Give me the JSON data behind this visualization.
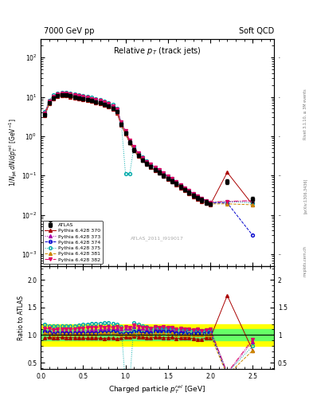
{
  "title_left": "7000 GeV pp",
  "title_right": "Soft QCD",
  "plot_title": "Relative $p_T$ (track jets)",
  "xlabel": "Charged particle $p_T^{rel}$ [GeV]",
  "ylabel_main": "$1/N_{jet}\\,dN/dp_T^{rel}$ [GeV$^{-1}$]",
  "ylabel_ratio": "Ratio to ATLAS",
  "watermark": "ATLAS_2011_I919017",
  "right_label_top": "Rivet 3.1.10, ≥ 3M events",
  "right_label_mid": "[arXiv:1306.3436]",
  "right_label_bot": "mcplots.cern.ch",
  "xlim": [
    0.0,
    2.75
  ],
  "ylim_main": [
    0.0005,
    300
  ],
  "ylim_ratio": [
    0.38,
    2.25
  ],
  "atlas_x": [
    0.05,
    0.1,
    0.15,
    0.2,
    0.25,
    0.3,
    0.35,
    0.4,
    0.45,
    0.5,
    0.55,
    0.6,
    0.65,
    0.7,
    0.75,
    0.8,
    0.85,
    0.9,
    0.95,
    1.0,
    1.05,
    1.1,
    1.15,
    1.2,
    1.25,
    1.3,
    1.35,
    1.4,
    1.45,
    1.5,
    1.55,
    1.6,
    1.65,
    1.7,
    1.75,
    1.8,
    1.85,
    1.9,
    1.95,
    2.0,
    2.2,
    2.5
  ],
  "atlas_y": [
    3.5,
    7.0,
    9.5,
    10.8,
    11.2,
    11.0,
    10.5,
    10.0,
    9.5,
    9.0,
    8.5,
    8.0,
    7.5,
    7.0,
    6.5,
    5.8,
    5.2,
    4.2,
    2.0,
    1.2,
    0.7,
    0.45,
    0.32,
    0.25,
    0.2,
    0.17,
    0.14,
    0.12,
    0.1,
    0.085,
    0.072,
    0.062,
    0.052,
    0.044,
    0.037,
    0.031,
    0.027,
    0.024,
    0.021,
    0.019,
    0.07,
    0.025
  ],
  "atlas_yerr": [
    0.3,
    0.5,
    0.6,
    0.6,
    0.6,
    0.6,
    0.6,
    0.5,
    0.5,
    0.5,
    0.5,
    0.4,
    0.4,
    0.4,
    0.3,
    0.3,
    0.3,
    0.2,
    0.15,
    0.1,
    0.07,
    0.05,
    0.03,
    0.025,
    0.02,
    0.018,
    0.015,
    0.013,
    0.011,
    0.009,
    0.008,
    0.007,
    0.006,
    0.005,
    0.004,
    0.004,
    0.003,
    0.003,
    0.003,
    0.002,
    0.01,
    0.004
  ],
  "py370_x": [
    0.05,
    0.1,
    0.15,
    0.2,
    0.25,
    0.3,
    0.35,
    0.4,
    0.45,
    0.5,
    0.55,
    0.6,
    0.65,
    0.7,
    0.75,
    0.8,
    0.85,
    0.9,
    0.95,
    1.0,
    1.05,
    1.1,
    1.15,
    1.2,
    1.25,
    1.3,
    1.35,
    1.4,
    1.45,
    1.5,
    1.55,
    1.6,
    1.65,
    1.7,
    1.75,
    1.8,
    1.85,
    1.9,
    1.95,
    2.0,
    2.2,
    2.5
  ],
  "py370_y": [
    3.3,
    6.7,
    9.0,
    10.3,
    10.7,
    10.5,
    10.0,
    9.5,
    9.0,
    8.5,
    8.0,
    7.6,
    7.1,
    6.6,
    6.1,
    5.5,
    4.9,
    3.9,
    1.9,
    1.15,
    0.67,
    0.44,
    0.31,
    0.24,
    0.19,
    0.16,
    0.135,
    0.115,
    0.095,
    0.081,
    0.069,
    0.058,
    0.049,
    0.042,
    0.035,
    0.029,
    0.025,
    0.022,
    0.02,
    0.018,
    0.12,
    0.018
  ],
  "py373_x": [
    0.05,
    0.1,
    0.15,
    0.2,
    0.25,
    0.3,
    0.35,
    0.4,
    0.45,
    0.5,
    0.55,
    0.6,
    0.65,
    0.7,
    0.75,
    0.8,
    0.85,
    0.9,
    0.95,
    1.0,
    1.05,
    1.1,
    1.15,
    1.2,
    1.25,
    1.3,
    1.35,
    1.4,
    1.45,
    1.5,
    1.55,
    1.6,
    1.65,
    1.7,
    1.75,
    1.8,
    1.85,
    1.9,
    1.95,
    2.0,
    2.2,
    2.5
  ],
  "py373_y": [
    3.8,
    7.5,
    10.0,
    11.5,
    12.0,
    11.8,
    11.2,
    10.7,
    10.2,
    9.7,
    9.2,
    8.7,
    8.2,
    7.7,
    7.2,
    6.5,
    5.8,
    4.7,
    2.2,
    1.35,
    0.78,
    0.52,
    0.36,
    0.28,
    0.22,
    0.185,
    0.157,
    0.134,
    0.112,
    0.095,
    0.08,
    0.068,
    0.057,
    0.049,
    0.041,
    0.034,
    0.03,
    0.026,
    0.023,
    0.021,
    0.021,
    0.022
  ],
  "py374_x": [
    0.05,
    0.1,
    0.15,
    0.2,
    0.25,
    0.3,
    0.35,
    0.4,
    0.45,
    0.5,
    0.55,
    0.6,
    0.65,
    0.7,
    0.75,
    0.8,
    0.85,
    0.9,
    0.95,
    1.0,
    1.05,
    1.1,
    1.15,
    1.2,
    1.25,
    1.3,
    1.35,
    1.4,
    1.45,
    1.5,
    1.55,
    1.6,
    1.65,
    1.7,
    1.75,
    1.8,
    1.85,
    1.9,
    1.95,
    2.0,
    2.2,
    2.5
  ],
  "py374_y": [
    3.7,
    7.3,
    9.7,
    11.1,
    11.6,
    11.4,
    10.8,
    10.3,
    9.8,
    9.3,
    8.8,
    8.3,
    7.8,
    7.3,
    6.8,
    6.1,
    5.5,
    4.4,
    2.05,
    1.25,
    0.72,
    0.48,
    0.34,
    0.26,
    0.21,
    0.175,
    0.148,
    0.127,
    0.106,
    0.09,
    0.076,
    0.064,
    0.054,
    0.046,
    0.038,
    0.032,
    0.028,
    0.025,
    0.022,
    0.02,
    0.02,
    0.003
  ],
  "py375_x": [
    0.05,
    0.1,
    0.15,
    0.2,
    0.25,
    0.3,
    0.35,
    0.4,
    0.45,
    0.5,
    0.55,
    0.6,
    0.65,
    0.7,
    0.75,
    0.8,
    0.85,
    0.9,
    0.95,
    1.0,
    1.05,
    1.1,
    1.15,
    1.2,
    1.25,
    1.3,
    1.35,
    1.4,
    1.45,
    1.5,
    1.55,
    1.6,
    1.65,
    1.7,
    1.75,
    1.8,
    1.85,
    1.9,
    1.95,
    2.0,
    2.2,
    2.5
  ],
  "py375_y": [
    4.2,
    8.2,
    11.0,
    12.5,
    13.0,
    12.8,
    12.2,
    11.7,
    11.2,
    10.7,
    10.2,
    9.7,
    9.1,
    8.5,
    7.9,
    7.1,
    6.3,
    5.0,
    2.3,
    0.11,
    0.11,
    0.55,
    0.38,
    0.29,
    0.23,
    0.19,
    0.16,
    0.137,
    0.114,
    0.096,
    0.082,
    0.069,
    0.058,
    0.049,
    0.041,
    0.034,
    0.03,
    0.026,
    0.023,
    0.021,
    0.022,
    0.02
  ],
  "py381_x": [
    0.05,
    0.1,
    0.15,
    0.2,
    0.25,
    0.3,
    0.35,
    0.4,
    0.45,
    0.5,
    0.55,
    0.6,
    0.65,
    0.7,
    0.75,
    0.8,
    0.85,
    0.9,
    0.95,
    1.0,
    1.05,
    1.1,
    1.15,
    1.2,
    1.25,
    1.3,
    1.35,
    1.4,
    1.45,
    1.5,
    1.55,
    1.6,
    1.65,
    1.7,
    1.75,
    1.8,
    1.85,
    1.9,
    1.95,
    2.0,
    2.2,
    2.5
  ],
  "py381_y": [
    3.6,
    7.2,
    9.6,
    11.0,
    11.5,
    11.3,
    10.7,
    10.2,
    9.7,
    9.2,
    8.7,
    8.2,
    7.7,
    7.2,
    6.7,
    6.0,
    5.4,
    4.3,
    2.0,
    1.22,
    0.7,
    0.46,
    0.33,
    0.255,
    0.203,
    0.171,
    0.145,
    0.123,
    0.103,
    0.087,
    0.074,
    0.062,
    0.052,
    0.044,
    0.037,
    0.031,
    0.027,
    0.024,
    0.021,
    0.019,
    0.019,
    0.018
  ],
  "py382_x": [
    0.05,
    0.1,
    0.15,
    0.2,
    0.25,
    0.3,
    0.35,
    0.4,
    0.45,
    0.5,
    0.55,
    0.6,
    0.65,
    0.7,
    0.75,
    0.8,
    0.85,
    0.9,
    0.95,
    1.0,
    1.05,
    1.1,
    1.15,
    1.2,
    1.25,
    1.3,
    1.35,
    1.4,
    1.45,
    1.5,
    1.55,
    1.6,
    1.65,
    1.7,
    1.75,
    1.8,
    1.85,
    1.9,
    1.95,
    2.0,
    2.2,
    2.5
  ],
  "py382_y": [
    3.9,
    7.8,
    10.4,
    11.9,
    12.4,
    12.2,
    11.6,
    11.1,
    10.6,
    10.1,
    9.6,
    9.1,
    8.5,
    8.0,
    7.4,
    6.7,
    5.9,
    4.8,
    2.25,
    1.38,
    0.79,
    0.53,
    0.37,
    0.285,
    0.227,
    0.19,
    0.161,
    0.137,
    0.115,
    0.097,
    0.082,
    0.069,
    0.058,
    0.049,
    0.041,
    0.034,
    0.03,
    0.026,
    0.023,
    0.021,
    0.022,
    0.023
  ],
  "color_atlas": "#000000",
  "color_370": "#aa0000",
  "color_373": "#aa00aa",
  "color_374": "#0000cc",
  "color_375": "#00aaaa",
  "color_381": "#cc8800",
  "color_382": "#dd0066",
  "green_band": [
    0.9,
    1.1
  ],
  "yellow_band": [
    0.8,
    1.2
  ]
}
